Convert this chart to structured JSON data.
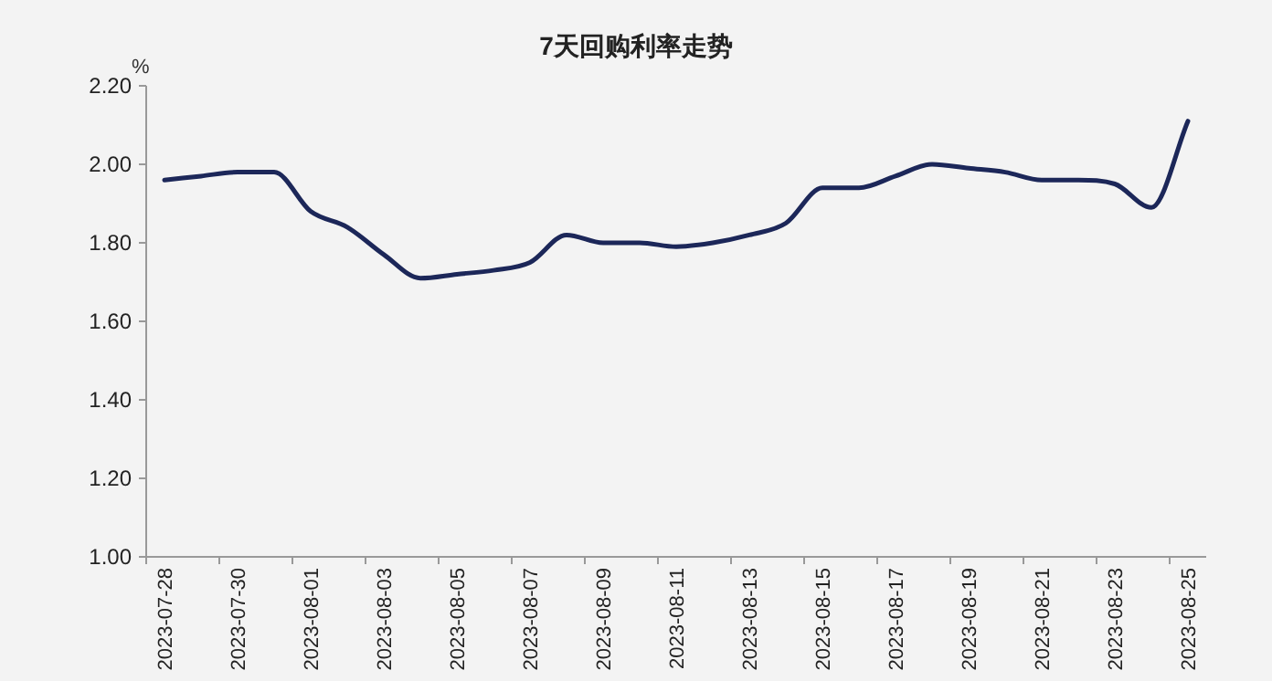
{
  "chart_data": {
    "type": "line",
    "title": "7天回购利率走势",
    "ylabel": "%",
    "categories": [
      "2023-07-28",
      null,
      "2023-07-30",
      null,
      "2023-08-01",
      null,
      "2023-08-03",
      null,
      "2023-08-05",
      null,
      "2023-08-07",
      null,
      "2023-08-09",
      null,
      "2023-08-11",
      null,
      "2023-08-13",
      null,
      "2023-08-15",
      null,
      "2023-08-17",
      null,
      "2023-08-19",
      null,
      "2023-08-21",
      null,
      "2023-08-23",
      null,
      "2023-08-25"
    ],
    "series": [
      {
        "color": "#1c2759",
        "values": [
          1.96,
          1.97,
          1.98,
          1.98,
          1.88,
          1.84,
          1.77,
          1.71,
          1.72,
          1.73,
          1.75,
          1.82,
          1.8,
          1.8,
          1.79,
          1.8,
          1.82,
          1.85,
          1.94,
          1.94,
          1.97,
          2.0,
          1.99,
          1.98,
          1.96,
          1.96,
          1.95,
          1.89,
          2.11
        ]
      }
    ],
    "ylim": [
      1.0,
      2.2
    ],
    "yticks": [
      {
        "value": 1.0,
        "label": "1.00"
      },
      {
        "value": 1.2,
        "label": "1.20"
      },
      {
        "value": 1.4,
        "label": "1.40"
      },
      {
        "value": 1.6,
        "label": "1.60"
      },
      {
        "value": 1.8,
        "label": "1.80"
      },
      {
        "value": 2.0,
        "label": "2.00"
      },
      {
        "value": 2.2,
        "label": "2.20"
      }
    ],
    "grid": false,
    "marker": "none",
    "line_style": "solid"
  }
}
